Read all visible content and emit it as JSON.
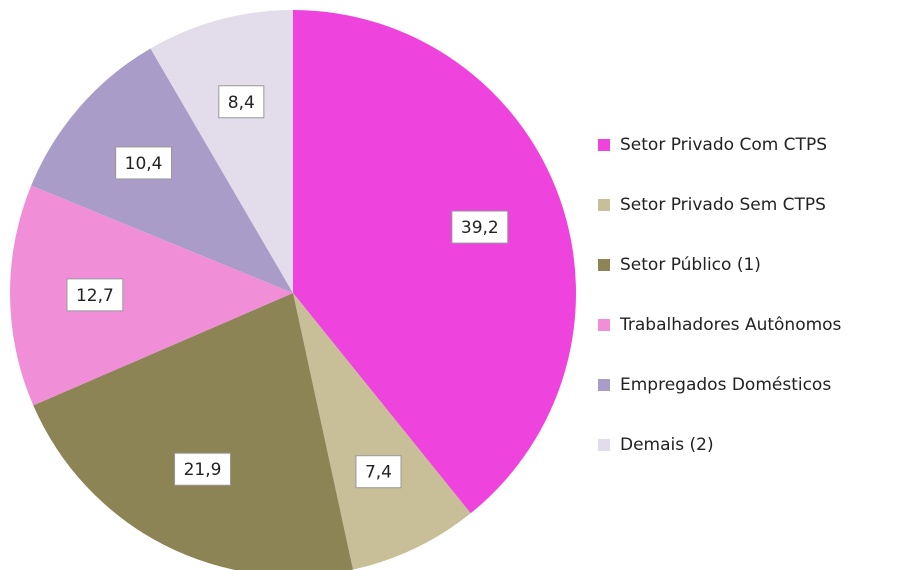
{
  "chart_data": {
    "type": "pie",
    "categories": [
      "Setor Privado Com CTPS",
      "Setor Privado Sem CTPS",
      "Setor Público (1)",
      "Trabalhadores Autônomos",
      "Empregados Domésticos",
      "Demais (2)"
    ],
    "values": [
      39.2,
      7.4,
      21.9,
      12.7,
      10.4,
      8.4
    ],
    "value_labels": [
      "39,2",
      "7,4",
      "21,9",
      "12,7",
      "10,4",
      "8,4"
    ],
    "colors": [
      "#ee44dd",
      "#c8bf98",
      "#8c8455",
      "#f08fd8",
      "#a99cc8",
      "#e3dceb"
    ],
    "legend": "right"
  }
}
